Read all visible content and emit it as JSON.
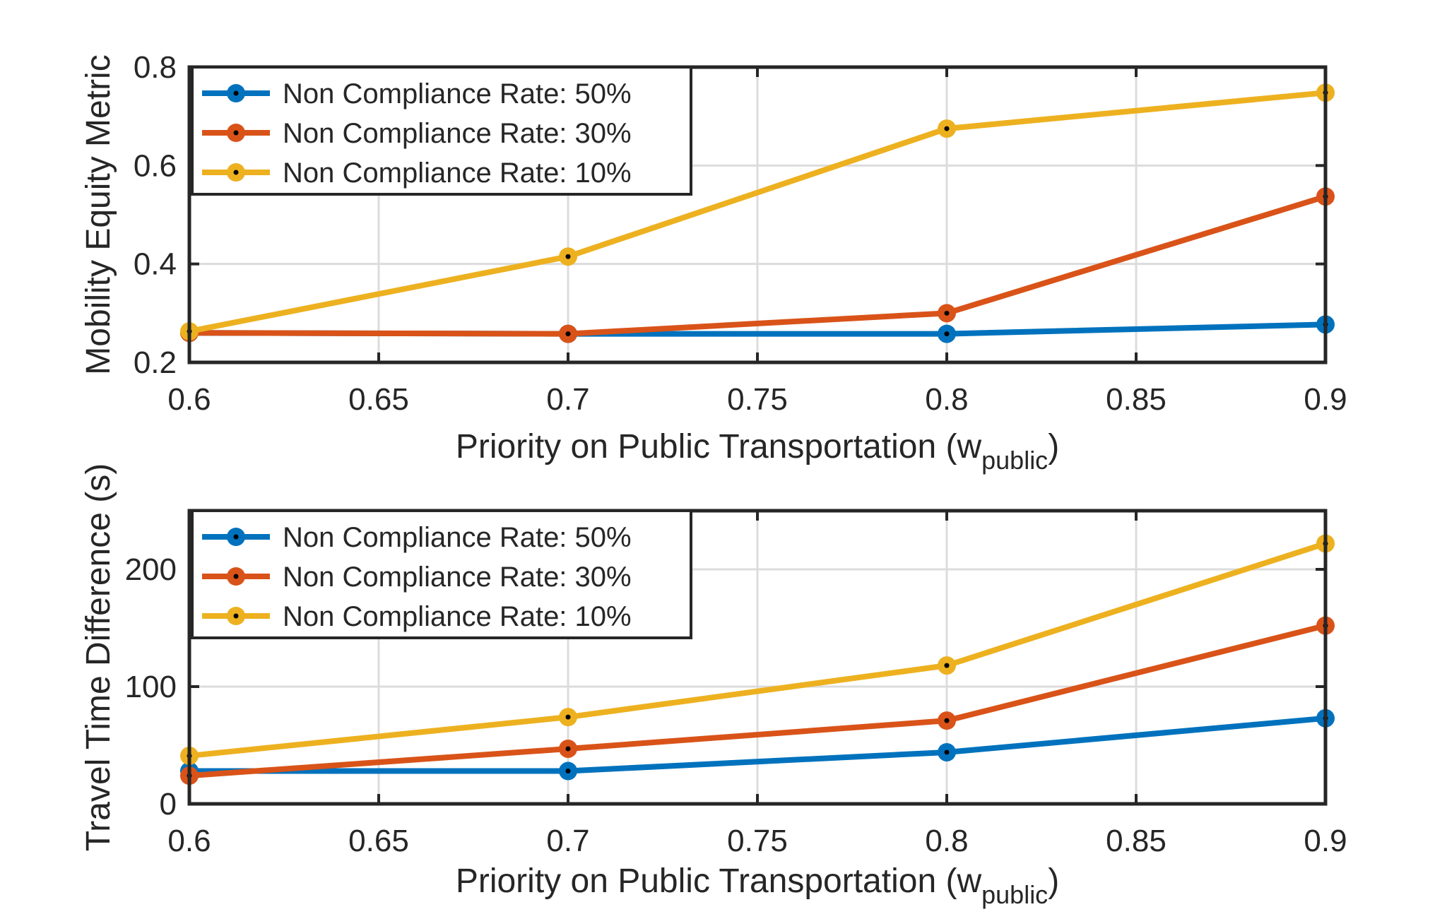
{
  "chart_data": [
    {
      "type": "line",
      "x": [
        0.6,
        0.7,
        0.8,
        0.9
      ],
      "series": [
        {
          "name": "Non Compliance Rate: 50%",
          "color": "#0072BD",
          "values": [
            0.26,
            0.258,
            0.258,
            0.277
          ]
        },
        {
          "name": "Non Compliance Rate: 30%",
          "color": "#D95319",
          "values": [
            0.26,
            0.258,
            0.3,
            0.537
          ]
        },
        {
          "name": "Non Compliance Rate: 10%",
          "color": "#EDB120",
          "values": [
            0.263,
            0.415,
            0.675,
            0.748
          ]
        }
      ],
      "xlabel_main": "Priority on Public Transportation (w",
      "xlabel_sub": "public",
      "xlabel_close": ")",
      "ylabel": "Mobility Equity Metric",
      "xlim": [
        0.6,
        0.9
      ],
      "ylim": [
        0.2,
        0.8
      ],
      "xticks": [
        0.6,
        0.65,
        0.7,
        0.75,
        0.8,
        0.85,
        0.9
      ],
      "xtick_labels": [
        "0.6",
        "0.65",
        "0.7",
        "0.75",
        "0.8",
        "0.85",
        "0.9"
      ],
      "yticks": [
        0.2,
        0.4,
        0.6,
        0.8
      ],
      "ytick_labels": [
        "0.2",
        "0.4",
        "0.6",
        "0.8"
      ],
      "grid": true,
      "legend_position": "top-left"
    },
    {
      "type": "line",
      "x": [
        0.6,
        0.7,
        0.8,
        0.9
      ],
      "series": [
        {
          "name": "Non Compliance Rate: 50%",
          "color": "#0072BD",
          "values": [
            28,
            28,
            44,
            73
          ]
        },
        {
          "name": "Non Compliance Rate: 30%",
          "color": "#D95319",
          "values": [
            24,
            47,
            71,
            152
          ]
        },
        {
          "name": "Non Compliance Rate: 10%",
          "color": "#EDB120",
          "values": [
            41,
            74,
            118,
            222
          ]
        }
      ],
      "xlabel_main": "Priority on Public Transportation (w",
      "xlabel_sub": "public",
      "xlabel_close": ")",
      "ylabel": "Travel Time Difference (s)",
      "xlim": [
        0.6,
        0.9
      ],
      "ylim": [
        0,
        250
      ],
      "xticks": [
        0.6,
        0.65,
        0.7,
        0.75,
        0.8,
        0.85,
        0.9
      ],
      "xtick_labels": [
        "0.6",
        "0.65",
        "0.7",
        "0.75",
        "0.8",
        "0.85",
        "0.9"
      ],
      "yticks": [
        0,
        100,
        200
      ],
      "ytick_labels": [
        "0",
        "100",
        "200"
      ],
      "grid": true,
      "legend_position": "top-left"
    }
  ]
}
